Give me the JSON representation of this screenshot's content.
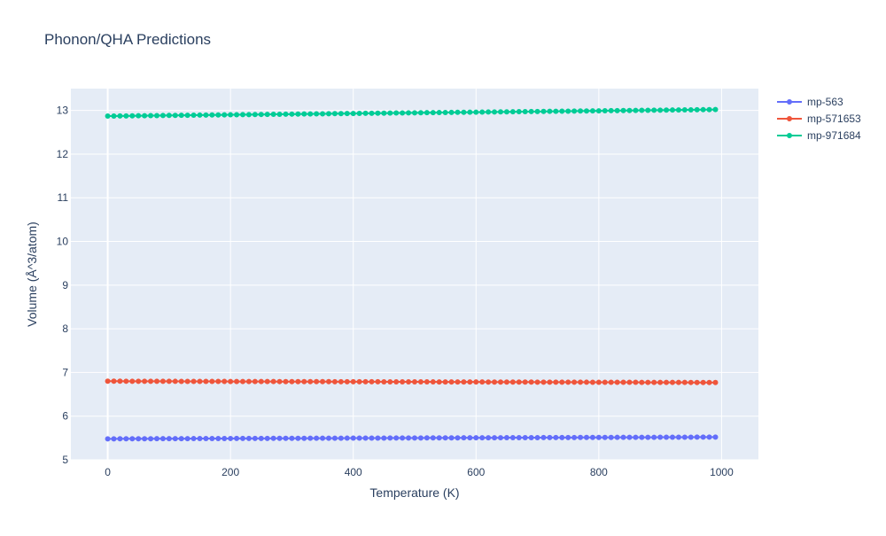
{
  "chart_data": {
    "type": "line",
    "title": "Phonon/QHA Predictions",
    "xlabel": "Temperature (K)",
    "ylabel": "Volume (Å^3/atom)",
    "xlim": [
      -60,
      1060
    ],
    "ylim": [
      5,
      13.5
    ],
    "x_ticks": [
      0,
      200,
      400,
      600,
      800,
      1000
    ],
    "y_ticks": [
      5,
      6,
      7,
      8,
      9,
      10,
      11,
      12,
      13
    ],
    "grid": true,
    "legend_position": "top-right",
    "x_start": 0,
    "x_step": 10,
    "series": [
      {
        "name": "mp-563",
        "color": "#636efa",
        "v_start": 5.48,
        "v_end": 5.52
      },
      {
        "name": "mp-571653",
        "color": "#ef553b",
        "v_start": 6.8,
        "v_end": 6.77
      },
      {
        "name": "mp-971684",
        "color": "#00cc96",
        "v_start": 12.87,
        "v_end": 13.02
      }
    ],
    "x_end": 990
  }
}
